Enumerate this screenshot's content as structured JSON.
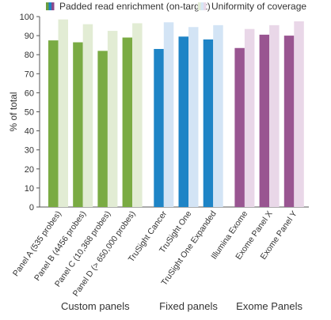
{
  "chart_data": {
    "type": "bar",
    "title": "",
    "xlabel": "",
    "ylabel": "% of total",
    "ylim": [
      0,
      100
    ],
    "yticks": [
      0,
      10,
      20,
      30,
      40,
      50,
      60,
      70,
      80,
      90,
      100
    ],
    "grid": false,
    "legend_position": "top",
    "legend": [
      {
        "label": "Padded read enrichment (on-target)",
        "swatch_colors": [
          "#6a9e3f",
          "#1e84c6",
          "#8a4a8e"
        ]
      },
      {
        "label": "Uniformity of coverage",
        "swatch_colors": [
          "#e2ecd4",
          "#d6e6f5",
          "#e8d8e8"
        ]
      }
    ],
    "series_names": [
      "Padded read enrichment (on-target)",
      "Uniformity of coverage"
    ],
    "categories": [
      "Panel A (535 probes)",
      "Panel B (4456 probes)",
      "Panel C (10,368 probes)",
      "Panel D (> 650,000 probes)",
      "TruSight Cancer",
      "TruSight One",
      "TruSight One Expanded",
      "Illumina Exome",
      "Exome Panel X",
      "Exome Panel Y"
    ],
    "groups": [
      {
        "label": "Custom panels",
        "start": 0,
        "end": 3,
        "colors": {
          "enrichment": "#7aab43",
          "uniformity": "#e2ecd4"
        }
      },
      {
        "label": "Fixed panels",
        "start": 4,
        "end": 6,
        "colors": {
          "enrichment": "#1e84c6",
          "uniformity": "#d3e4f5"
        }
      },
      {
        "label": "Exome Panels",
        "start": 7,
        "end": 9,
        "colors": {
          "enrichment": "#995591",
          "uniformity": "#e9d7e8"
        }
      }
    ],
    "series": [
      {
        "name": "Padded read enrichment (on-target)",
        "values": [
          87.5,
          86.5,
          82,
          89,
          83,
          89.5,
          88,
          83.5,
          90.5,
          90
        ]
      },
      {
        "name": "Uniformity of coverage",
        "values": [
          98.5,
          96,
          92.5,
          96.5,
          97,
          94.5,
          95.5,
          93.5,
          95.5,
          97.5
        ]
      }
    ]
  }
}
